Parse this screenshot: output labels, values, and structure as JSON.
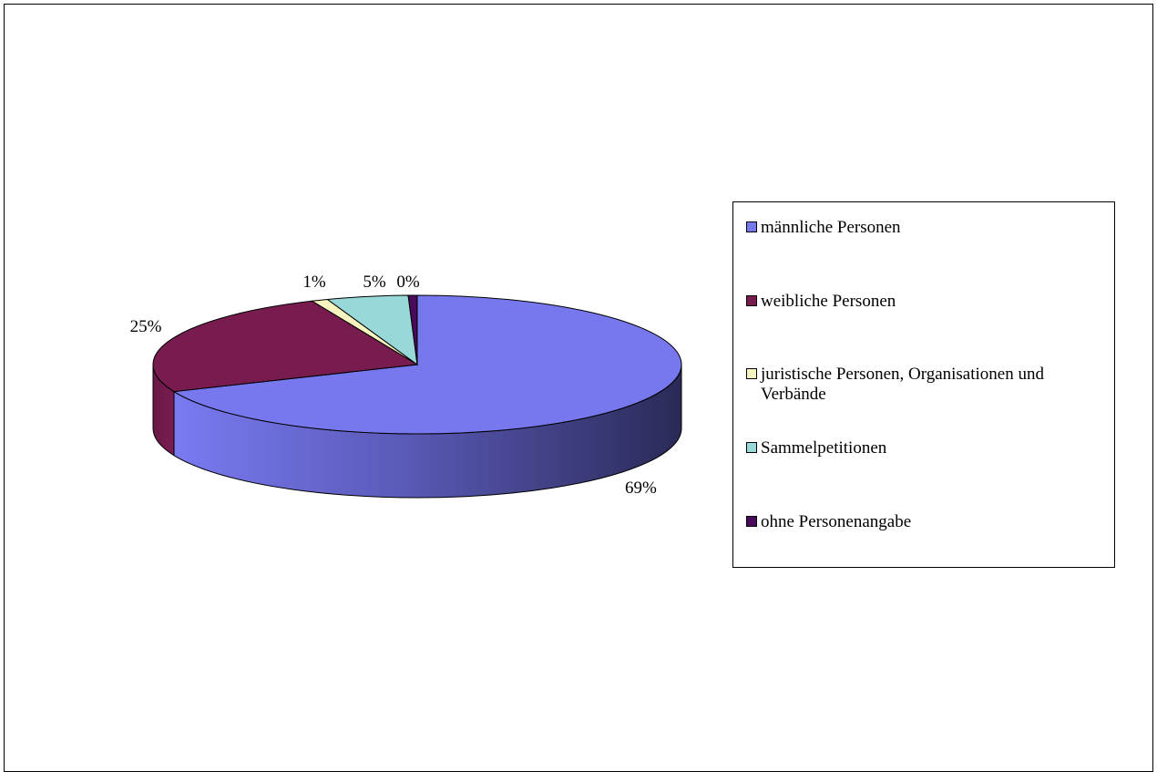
{
  "chart_data": {
    "type": "pie",
    "style": "3d",
    "categories": [
      "männliche Personen",
      "weibliche Personen",
      "juristische Personen, Organisationen und Verbände",
      "Sammelpetitionen",
      "ohne Personenangabe"
    ],
    "values": [
      69,
      25,
      1,
      5,
      0
    ],
    "data_labels": [
      "69%",
      "25%",
      "1%",
      "5%",
      "0%"
    ],
    "colors": [
      "#7878EE",
      "#781C50",
      "#F8F4C0",
      "#98D8D8",
      "#4A0A5A"
    ],
    "legend_position": "right"
  }
}
